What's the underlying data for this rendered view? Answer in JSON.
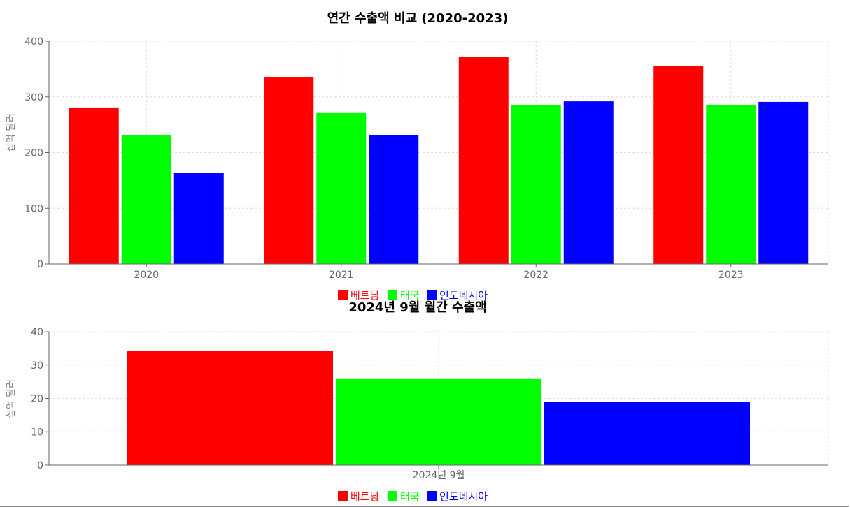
{
  "chart_data": [
    {
      "type": "bar",
      "title": "연간 수출액 비교 (2020-2023)",
      "xlabel": "",
      "ylabel": "십억 달러",
      "ylim": [
        0,
        400
      ],
      "yticks": [
        0,
        100,
        200,
        300,
        400
      ],
      "grid": true,
      "legend_position": "bottom",
      "categories": [
        "2020",
        "2021",
        "2022",
        "2023"
      ],
      "series": [
        {
          "name": "베트남",
          "color": "#ff0000",
          "values": [
            281,
            336,
            372,
            356
          ]
        },
        {
          "name": "태국",
          "color": "#00ff00",
          "values": [
            231,
            271,
            286,
            286
          ]
        },
        {
          "name": "인도네시아",
          "color": "#0000ff",
          "values": [
            163,
            231,
            292,
            291
          ]
        }
      ]
    },
    {
      "type": "bar",
      "title": "2024년 9월 월간 수출액",
      "xlabel": "",
      "ylabel": "십억 달러",
      "ylim": [
        0,
        40
      ],
      "yticks": [
        0,
        10,
        20,
        30,
        40
      ],
      "grid": true,
      "legend_position": "bottom",
      "categories": [
        "2024년 9월"
      ],
      "series": [
        {
          "name": "베트남",
          "color": "#ff0000",
          "values": [
            34.2
          ]
        },
        {
          "name": "태국",
          "color": "#00ff00",
          "values": [
            26
          ]
        },
        {
          "name": "인도네시아",
          "color": "#0000ff",
          "values": [
            19
          ]
        }
      ]
    }
  ]
}
